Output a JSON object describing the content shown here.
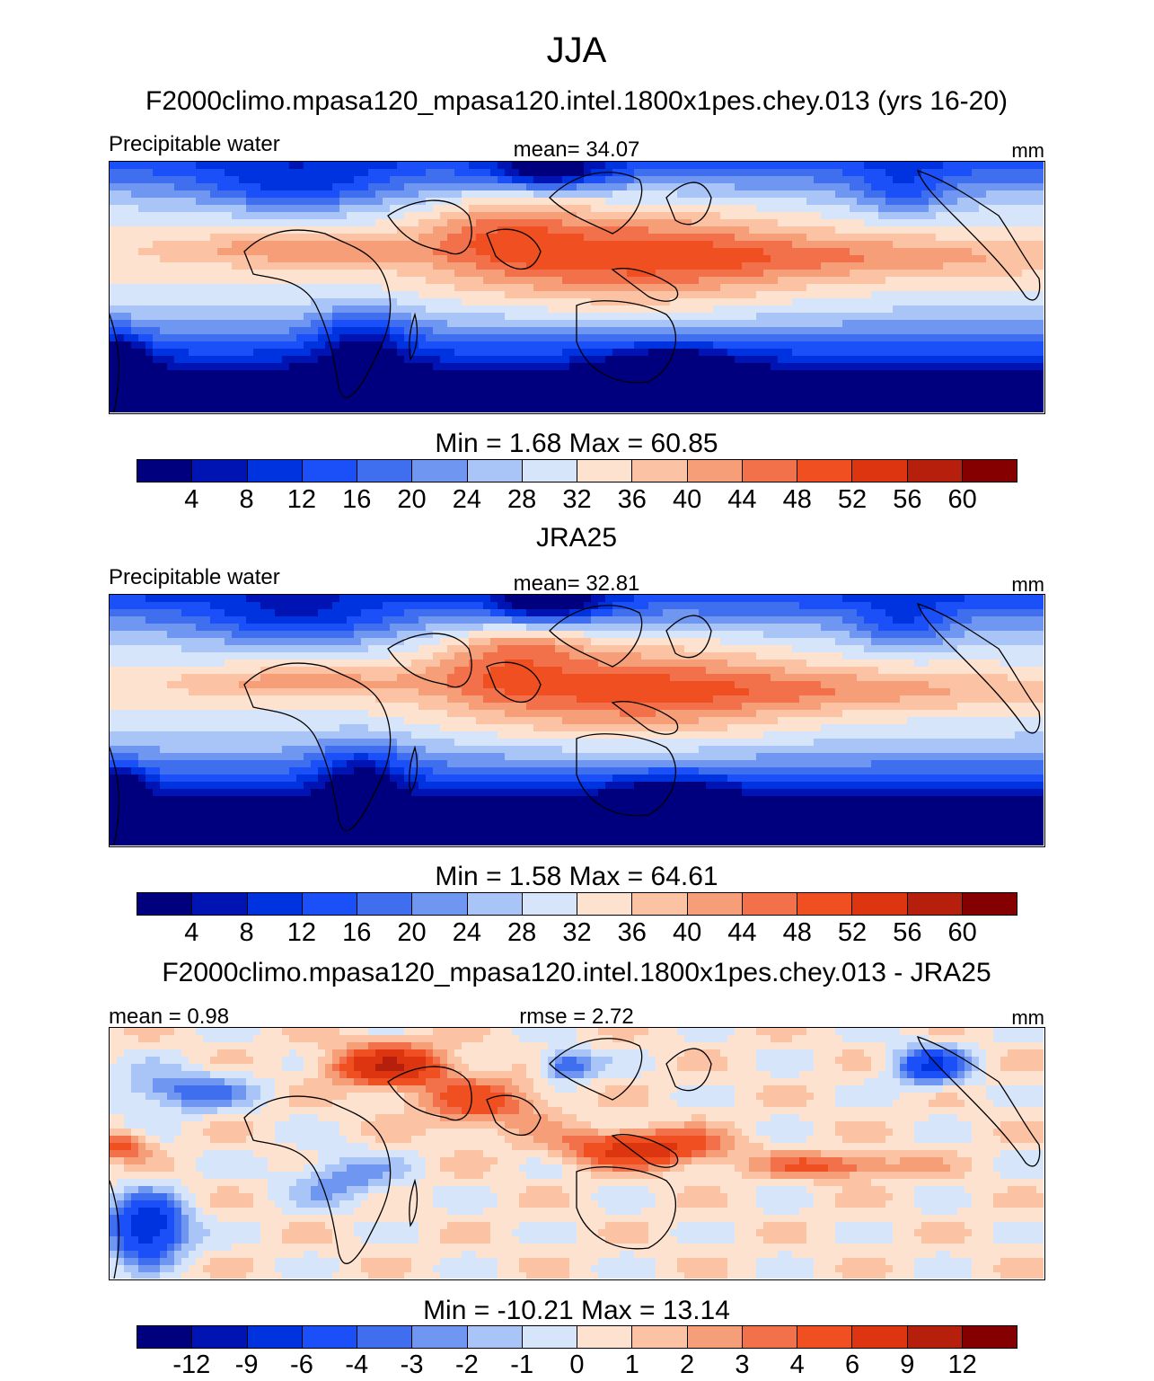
{
  "colors": {
    "neg": [
      "#00007e",
      "#0013b3",
      "#0033e0",
      "#1b4ff7",
      "#3f6fee",
      "#6f97f2",
      "#a9c4f7",
      "#d6e5f9"
    ],
    "pos": [
      "#fde3cf",
      "#fbc2a3",
      "#f69e78",
      "#f2714a",
      "#f04f21",
      "#dc3510",
      "#b51f0b",
      "#850000"
    ]
  },
  "chart_data": [
    {
      "type": "heatmap",
      "suptitle": "JJA",
      "title": "F2000climo.mpasa120_mpasa120.intel.1800x1pes.chey.013 (yrs 16-20)",
      "left_label": "Precipitable water",
      "center_label": "mean=  34.07",
      "units": "mm",
      "minmax_label": "Min =    1.68 Max =   60.85",
      "min": 1.68,
      "max": 60.85,
      "mean": 34.07,
      "colorbar_ticks": [
        "4",
        "8",
        "12",
        "16",
        "20",
        "24",
        "28",
        "32",
        "36",
        "40",
        "44",
        "48",
        "52",
        "56",
        "60"
      ]
    },
    {
      "type": "heatmap",
      "title": "JRA25",
      "left_label": "Precipitable water",
      "center_label": "mean=  32.81",
      "units": "mm",
      "minmax_label": "Min =    1.58 Max =   64.61",
      "min": 1.58,
      "max": 64.61,
      "mean": 32.81,
      "colorbar_ticks": [
        "4",
        "8",
        "12",
        "16",
        "20",
        "24",
        "28",
        "32",
        "36",
        "40",
        "44",
        "48",
        "52",
        "56",
        "60"
      ]
    },
    {
      "type": "heatmap",
      "title": "F2000climo.mpasa120_mpasa120.intel.1800x1pes.chey.013 - JRA25",
      "left_label": "mean =   0.98",
      "center_label": "rmse =   2.72",
      "units": "mm",
      "minmax_label": "Min = -10.21 Max =  13.14",
      "min": -10.21,
      "max": 13.14,
      "mean": 0.98,
      "rmse": 2.72,
      "colorbar_ticks": [
        "-12",
        "-9",
        "-6",
        "-4",
        "-3",
        "-2",
        "-1",
        "0",
        "1",
        "2",
        "3",
        "4",
        "6",
        "9",
        "12"
      ]
    }
  ]
}
